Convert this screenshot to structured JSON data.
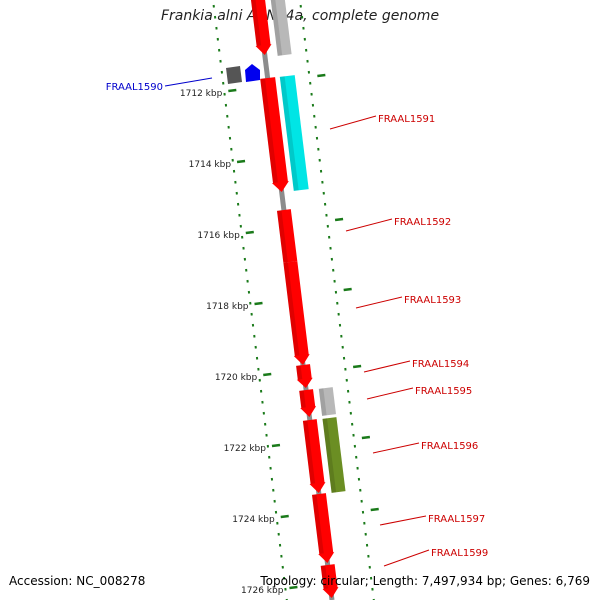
{
  "title": "Frankia alni ACN14a, complete genome",
  "accession": "Accession: NC_008278",
  "topology": "Topology: circular; Length: 7,497,934 bp; Genes: 6,769",
  "colors": {
    "backbone": "#8c8c8c",
    "tick": "#1a7a1a",
    "red_gene": "#ff0000",
    "cyan_gene": "#00e5e5",
    "olive_gene": "#6b8e23",
    "gray_gene": "#b8b8b8",
    "dark_gene": "#555555",
    "blue_gene": "#0000ee",
    "label_red": "#cc0000",
    "label_blue": "#0000cc"
  },
  "scale": {
    "labels": [
      "1712 kbp",
      "1714 kbp",
      "1716 kbp",
      "1718 kbp",
      "1720 kbp",
      "1722 kbp",
      "1724 kbp",
      "1726 kbp"
    ]
  },
  "genes": [
    {
      "label": "FRAAL1590",
      "color": "blue"
    },
    {
      "label": "FRAAL1591",
      "color": "red"
    },
    {
      "label": "FRAAL1592",
      "color": "red"
    },
    {
      "label": "FRAAL1593",
      "color": "red"
    },
    {
      "label": "FRAAL1594",
      "color": "red"
    },
    {
      "label": "FRAAL1595",
      "color": "red"
    },
    {
      "label": "FRAAL1596",
      "color": "red"
    },
    {
      "label": "FRAAL1597",
      "color": "red"
    },
    {
      "label": "FRAAL1599",
      "color": "red"
    }
  ]
}
